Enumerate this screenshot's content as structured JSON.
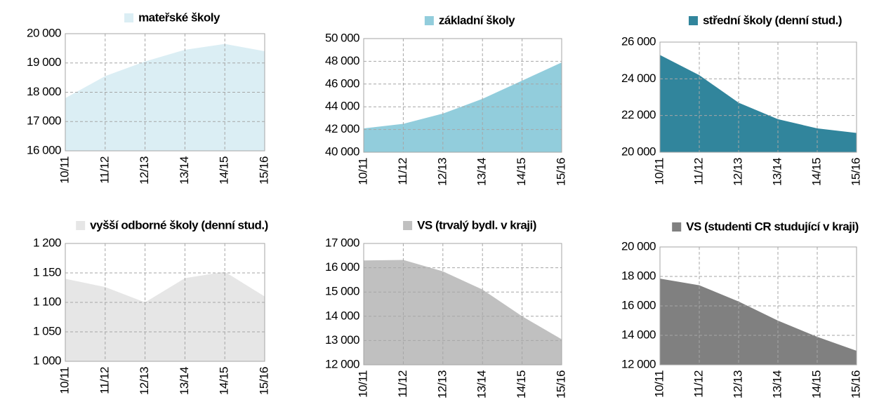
{
  "chart_data": [
    {
      "type": "area",
      "title": "mateřské školy",
      "color": "#dbeef4",
      "categories": [
        "10/11",
        "11/12",
        "12/13",
        "13/14",
        "14/15",
        "15/16"
      ],
      "values": [
        17800,
        18550,
        19050,
        19450,
        19650,
        19400
      ],
      "ylim": [
        16000,
        20000
      ],
      "yticks": [
        {
          "value": 16000,
          "label": "16 000"
        },
        {
          "value": 17000,
          "label": "17 000"
        },
        {
          "value": 18000,
          "label": "18 000"
        },
        {
          "value": 19000,
          "label": "19 000"
        },
        {
          "value": 20000,
          "label": "20 000"
        }
      ],
      "grid": true
    },
    {
      "type": "area",
      "title": "základní školy",
      "color": "#92cddc",
      "categories": [
        "10/11",
        "11/12",
        "12/13",
        "13/14",
        "14/15",
        "15/16"
      ],
      "values": [
        42100,
        42500,
        43400,
        44700,
        46300,
        47900
      ],
      "ylim": [
        40000,
        50000
      ],
      "yticks": [
        {
          "value": 40000,
          "label": "40 000"
        },
        {
          "value": 42000,
          "label": "42 000"
        },
        {
          "value": 44000,
          "label": "44 000"
        },
        {
          "value": 46000,
          "label": "46 000"
        },
        {
          "value": 48000,
          "label": "48 000"
        },
        {
          "value": 50000,
          "label": "50 000"
        }
      ],
      "grid": true
    },
    {
      "type": "area",
      "title": "střední školy (denní stud.)",
      "color": "#31859c",
      "categories": [
        "10/11",
        "11/12",
        "12/13",
        "13/14",
        "14/15",
        "15/16"
      ],
      "values": [
        25300,
        24200,
        22700,
        21800,
        21300,
        21050
      ],
      "ylim": [
        20000,
        26000
      ],
      "yticks": [
        {
          "value": 20000,
          "label": "20 000"
        },
        {
          "value": 22000,
          "label": "22 000"
        },
        {
          "value": 24000,
          "label": "24 000"
        },
        {
          "value": 26000,
          "label": "26 000"
        }
      ],
      "grid": true
    },
    {
      "type": "area",
      "title": "vyšší odborné školy (denní stud.)",
      "color": "#e6e6e6",
      "categories": [
        "10/11",
        "11/12",
        "12/13",
        "13/14",
        "14/15",
        "15/16"
      ],
      "values": [
        1140,
        1126,
        1100,
        1141,
        1152,
        1110
      ],
      "ylim": [
        1000,
        1200
      ],
      "yticks": [
        {
          "value": 1000,
          "label": "1 000"
        },
        {
          "value": 1050,
          "label": "1 050"
        },
        {
          "value": 1100,
          "label": "1 100"
        },
        {
          "value": 1150,
          "label": "1 150"
        },
        {
          "value": 1200,
          "label": "1 200"
        }
      ],
      "grid": true
    },
    {
      "type": "area",
      "title": "VS (trvalý bydl. v kraji)",
      "color": "#c0c0c0",
      "categories": [
        "10/11",
        "11/12",
        "12/13",
        "13/14",
        "14/15",
        "15/16"
      ],
      "values": [
        16300,
        16320,
        15850,
        15100,
        14000,
        13050
      ],
      "ylim": [
        12000,
        17000
      ],
      "yticks": [
        {
          "value": 12000,
          "label": "12 000"
        },
        {
          "value": 13000,
          "label": "13 000"
        },
        {
          "value": 14000,
          "label": "14 000"
        },
        {
          "value": 15000,
          "label": "15 000"
        },
        {
          "value": 16000,
          "label": "16 000"
        },
        {
          "value": 17000,
          "label": "17 000"
        }
      ],
      "grid": true
    },
    {
      "type": "area",
      "title": "VS (studenti CR studující v kraji)",
      "color": "#808080",
      "categories": [
        "10/11",
        "11/12",
        "12/13",
        "13/14",
        "14/15",
        "15/16"
      ],
      "values": [
        17850,
        17400,
        16300,
        15000,
        13900,
        12950
      ],
      "ylim": [
        12000,
        20000
      ],
      "yticks": [
        {
          "value": 12000,
          "label": "12 000"
        },
        {
          "value": 14000,
          "label": "14 000"
        },
        {
          "value": 16000,
          "label": "16 000"
        },
        {
          "value": 18000,
          "label": "18 000"
        },
        {
          "value": 20000,
          "label": "20 000"
        }
      ],
      "grid": true
    }
  ]
}
